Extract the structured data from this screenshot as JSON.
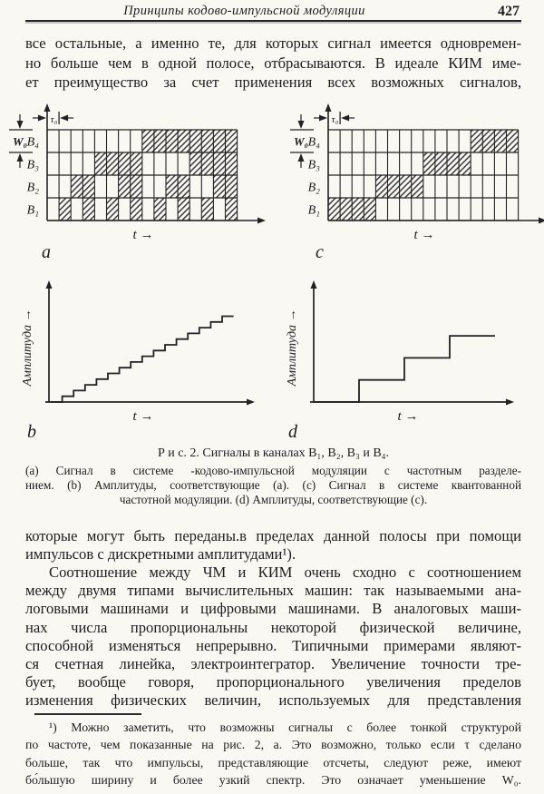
{
  "header": {
    "title": "Принципы кодово-импульсной модуляции",
    "page_number": "427"
  },
  "paragraph_top": {
    "lines": [
      "все остальные, а именно те, для которых сигнал имеется одновремен-",
      "но больше чем в одной полосе, отбрасываются. В идеале КИМ име-",
      "ет преимущество за счет применения всех возможных сигналов,"
    ]
  },
  "figure": {
    "row_labels": [
      "B₄",
      "B₃",
      "B₂",
      "B₁"
    ],
    "tau_label": "τ₀",
    "bandwidth_label": "W₀",
    "time_label": "t",
    "amplitude_label": "Амплитуда",
    "panel_labels": {
      "a": "a",
      "b": "b",
      "c": "c",
      "d": "d"
    }
  },
  "chart_data": [
    {
      "id": "a",
      "type": "heatmap",
      "description": "Сигнал в системе кодово-импульсной модуляции с частотным разделением: двоичный счёт 0–15, заштрихованная ячейка = импульс присутствует",
      "rows": [
        "B₄",
        "B₃",
        "B₂",
        "B₁"
      ],
      "n_cols": 16,
      "cells": [
        "0000000011111111",
        "0000111100001111",
        "0011001100110011",
        "0101010101010101"
      ],
      "xlabel": "t",
      "cell_width_label": "τ₀",
      "row_height_label": "W₀"
    },
    {
      "id": "b",
      "type": "line",
      "shape": "staircase",
      "description": "Амплитуды, соответствующие (a): линейно растущая лестница из 16 уровней",
      "step_values": [
        0,
        1,
        2,
        3,
        4,
        5,
        6,
        7,
        8,
        9,
        10,
        11,
        12,
        13,
        14,
        15
      ],
      "xlabel": "t",
      "ylabel": "Амплитуда"
    },
    {
      "id": "c",
      "type": "heatmap",
      "description": "Сигнал в системе квантованной частотной модуляции: в каждый момент активен один канал",
      "rows": [
        "B₄",
        "B₃",
        "B₂",
        "B₁"
      ],
      "n_cols": 16,
      "cells": [
        "0000000000001111",
        "0000000011110000",
        "0000111100000000",
        "1111000000000000"
      ],
      "xlabel": "t",
      "cell_width_label": "τ₀",
      "row_height_label": "W₀"
    },
    {
      "id": "d",
      "type": "line",
      "shape": "staircase",
      "description": "Амплитуды, соответствующие (c): четыре широких ступени",
      "step_values": [
        0,
        0,
        0,
        0,
        1,
        1,
        1,
        1,
        2,
        2,
        2,
        2,
        3,
        3,
        3,
        3
      ],
      "xlabel": "t",
      "ylabel": "Амплитуда"
    }
  ],
  "caption": {
    "title_line": "Р и с. 2.  Сигналы в каналах B₁, B₂, B₃ и B₄.",
    "lines": [
      "(a) Сигнал в системе -кодово-импульсной модуляции с частотным разделе-",
      "нием. (b) Амплитуды, соответствующие (a). (c) Сигнал в системе квантованной",
      "частотной модуляции. (d) Амплитуды, соответствующие (c)."
    ]
  },
  "paragraph_main_a": {
    "lines": [
      "которые могут быть переданы.в пределах данной полосы при помощи",
      "импульсов с дискретными амплитудами¹)."
    ]
  },
  "paragraph_main_b": {
    "lines": [
      "\tСоотношение между ЧМ и КИМ очень сходно с соотношением",
      "между двумя типами вычислительных машин: так называемыми ана-",
      "логовыми машинами и цифровыми машинами. В аналоговых маши-",
      "нах числа пропорциональны некоторой физической величине,",
      "способной изменяться непрерывно. Типичными примерами являют-",
      "ся счетная линейка, электроинтегратор.  Увеличение точности тре-",
      "бует, вообще говоря, пропорционального увеличения пределов",
      "изменения физических величин, используемых для представления"
    ]
  },
  "footnote": {
    "lines": [
      "\t¹) Можно заметить, что возможны сигналы с более тонкой структурой",
      "по частоте, чем показанные на рис. 2, a. Это возможно, только если τ сделано",
      "больше, так что импульсы, представляющие отсчеты, следуют реже, имеют",
      "бо́льшую ширину и более узкий спектр. Это означает уменьшение W₀."
    ]
  }
}
